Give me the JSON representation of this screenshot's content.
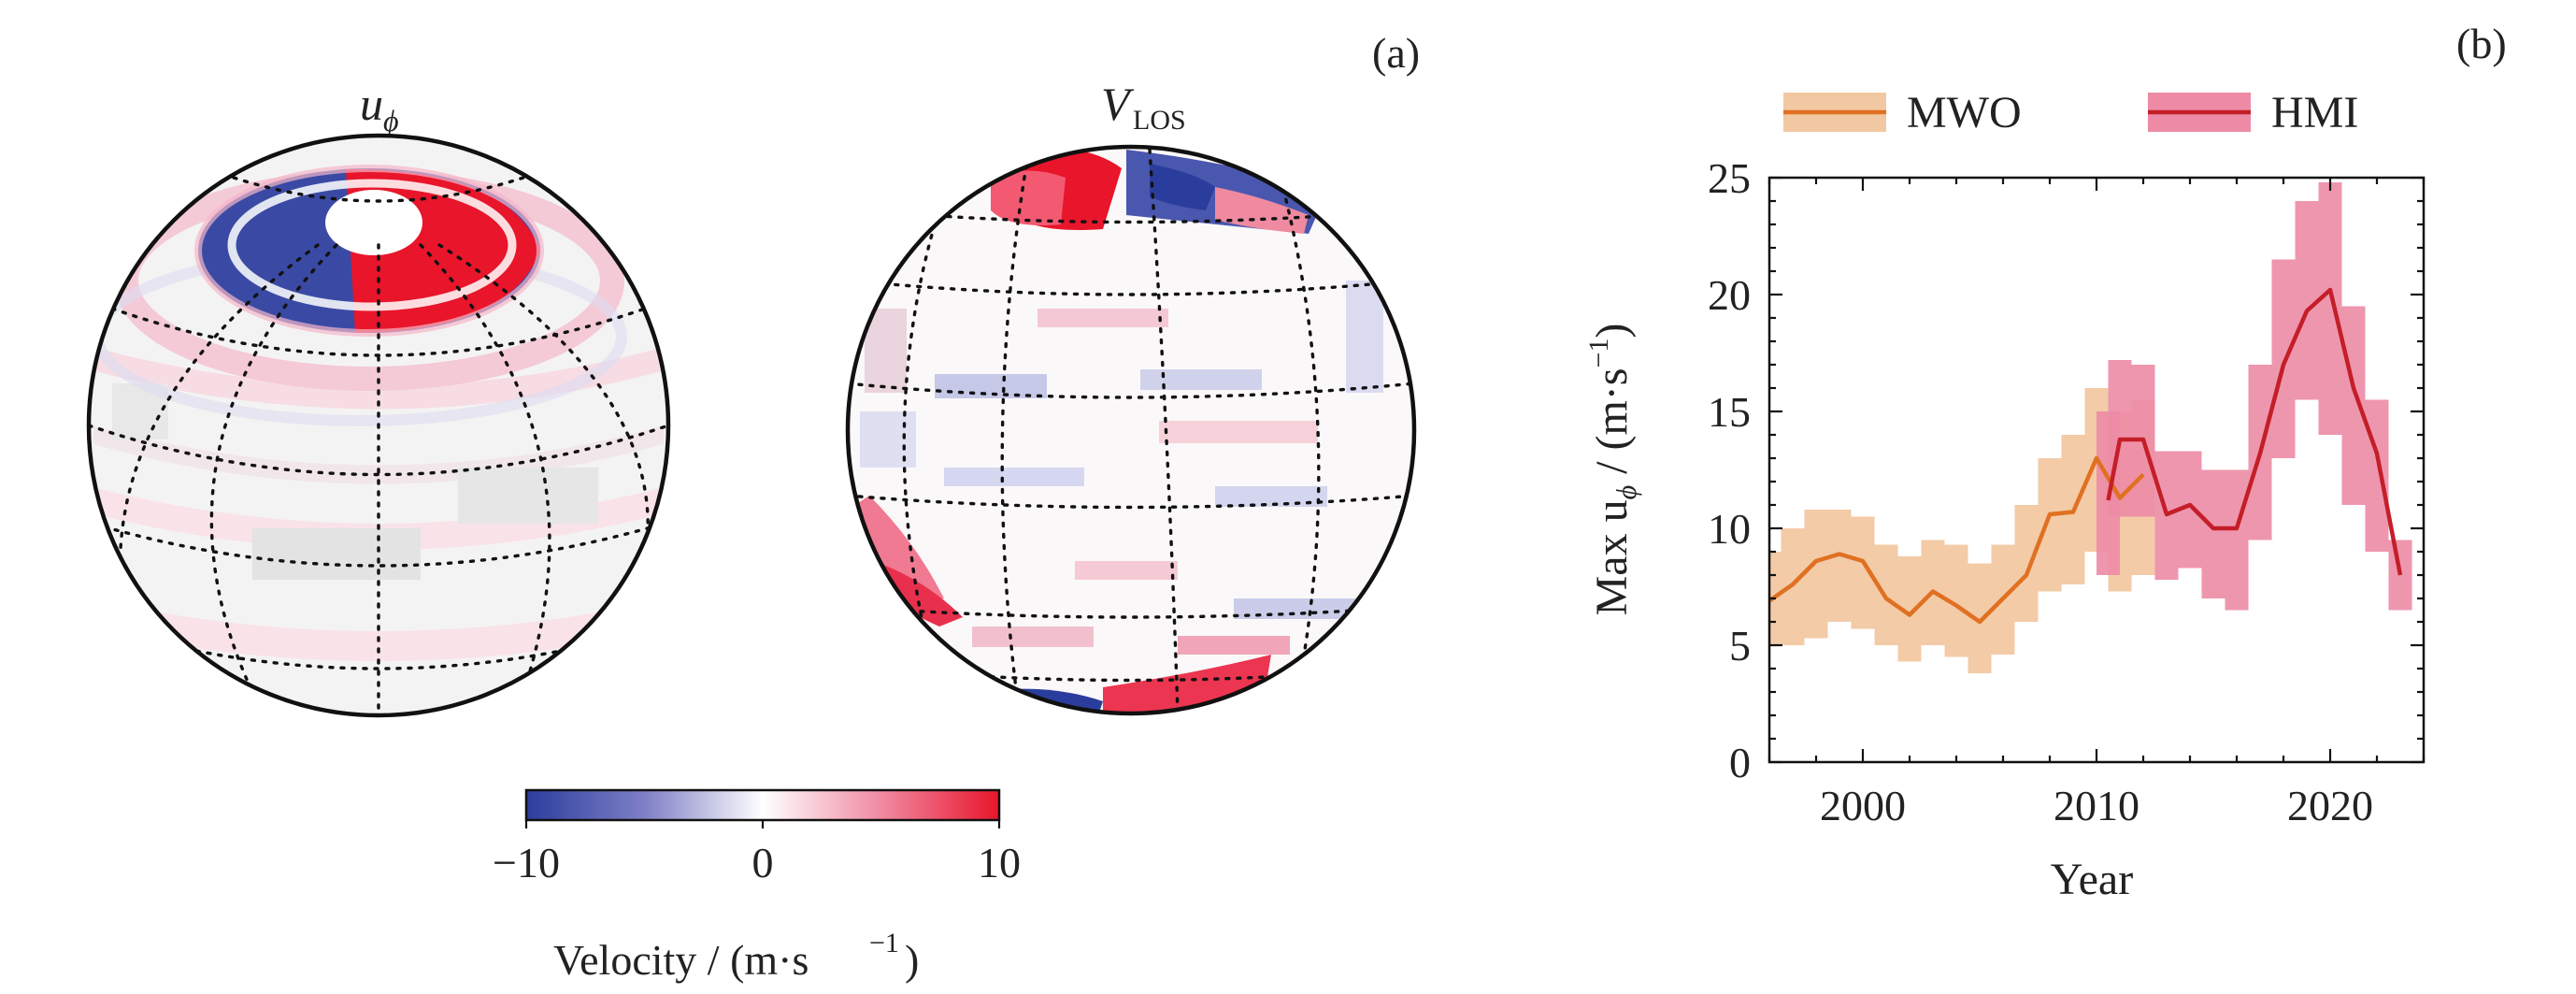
{
  "panel_a": {
    "label": "(a)",
    "left_globe_title": "u",
    "left_globe_title_sub": "ϕ",
    "right_globe_title": "V",
    "right_globe_title_sub": "LOS",
    "colorbar": {
      "min": -10,
      "max": 10,
      "ticks": [
        "−10",
        "0",
        "10"
      ],
      "label_main": "Velocity / (m·s",
      "label_sup": "−1",
      "label_end": ")",
      "colors": [
        "#2b3d9c",
        "#ffffff",
        "#e8152b"
      ]
    }
  },
  "chart_data": {
    "type": "line",
    "panel_label": "(b)",
    "xlabel": "Year",
    "ylabel_main": "Max u",
    "ylabel_sub": "ϕ",
    "ylabel_units": " / (m·s",
    "ylabel_sup": "−1",
    "ylabel_end": ")",
    "xlim": [
      1996,
      2024
    ],
    "ylim": [
      0,
      25
    ],
    "xticks": [
      2000,
      2010,
      2020
    ],
    "yticks": [
      0,
      5,
      10,
      15,
      20,
      25
    ],
    "legend": {
      "placement": "top"
    },
    "series": [
      {
        "name": "MWO",
        "line_color": "#e07022",
        "band_color": "#f2c8a2",
        "x": [
          1996,
          1997,
          1998,
          1999,
          2000,
          2001,
          2002,
          2003,
          2004,
          2005,
          2006,
          2007,
          2008,
          2009,
          2010,
          2011,
          2012
        ],
        "y": [
          6.9,
          7.6,
          8.6,
          8.9,
          8.6,
          7.0,
          6.3,
          7.3,
          6.7,
          6.0,
          7.0,
          8.0,
          10.6,
          10.7,
          13.0,
          11.3,
          12.3
        ],
        "lower": [
          5.0,
          5.0,
          5.3,
          6.0,
          5.7,
          5.0,
          4.3,
          5.0,
          4.5,
          3.8,
          4.6,
          6.0,
          7.3,
          7.6,
          9.0,
          7.3,
          8.0
        ],
        "upper": [
          9.0,
          10.0,
          10.8,
          10.8,
          10.5,
          9.3,
          8.8,
          9.5,
          9.3,
          8.5,
          9.3,
          11.0,
          13.0,
          14.0,
          16.0,
          15.0,
          15.5
        ]
      },
      {
        "name": "HMI",
        "line_color": "#c41e28",
        "band_color": "#ed8ba6",
        "x": [
          2010.5,
          2011,
          2012,
          2013,
          2014,
          2015,
          2016,
          2017,
          2018,
          2019,
          2020,
          2021,
          2022,
          2023
        ],
        "y": [
          11.2,
          13.8,
          13.8,
          10.6,
          11.0,
          10.0,
          10.0,
          13.2,
          17.0,
          19.3,
          20.2,
          16.0,
          13.2,
          8.0
        ],
        "lower": [
          8.0,
          10.5,
          10.5,
          7.8,
          8.3,
          7.0,
          6.5,
          9.5,
          13.0,
          15.5,
          14.0,
          11.0,
          9.0,
          6.5
        ],
        "upper": [
          15.0,
          17.2,
          17.0,
          13.3,
          13.3,
          12.5,
          12.5,
          17.0,
          21.5,
          24.0,
          24.8,
          19.5,
          15.5,
          9.5
        ]
      }
    ]
  }
}
